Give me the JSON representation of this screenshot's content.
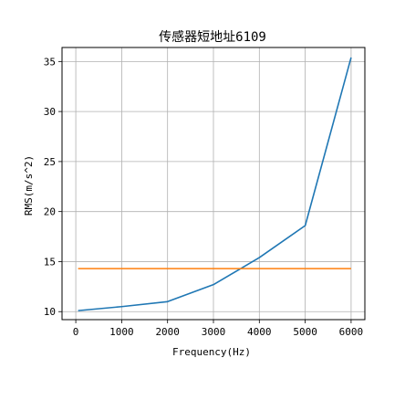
{
  "chart_data": {
    "type": "line",
    "title": "传感器短地址6109",
    "xlabel": "Frequency(Hz)",
    "ylabel": "RMS(m/s^2)",
    "xlim": [
      -300,
      6300
    ],
    "ylim": [
      9.2,
      36.4
    ],
    "xticks": [
      0,
      1000,
      2000,
      3000,
      4000,
      5000,
      6000
    ],
    "yticks": [
      10,
      15,
      20,
      25,
      30,
      35
    ],
    "grid": true,
    "series": [
      {
        "color": "#1f77b4",
        "x": [
          50,
          1000,
          2000,
          3000,
          4000,
          5000,
          6000
        ],
        "y": [
          10.1,
          10.5,
          11.0,
          12.7,
          15.4,
          18.6,
          35.4
        ]
      },
      {
        "color": "#ff7f0e",
        "x": [
          50,
          6000
        ],
        "y": [
          14.3,
          14.3
        ]
      }
    ]
  }
}
